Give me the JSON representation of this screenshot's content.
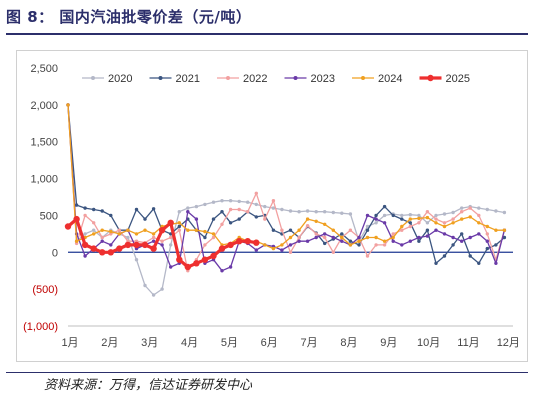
{
  "title": "图 8： 国内汽油批零价差（元/吨）",
  "source": "资料来源：万得，信达证券研发中心",
  "chart_data": {
    "type": "line",
    "title": "图 8： 国内汽油批零价差（元/吨）",
    "ylim": [
      -1000,
      2500
    ],
    "yticks": [
      -1000,
      -500,
      0,
      500,
      1000,
      1500,
      2000,
      2500
    ],
    "ytick_labels": [
      "(1,000)",
      "(500)",
      "0",
      "500",
      "1,000",
      "1,500",
      "2,000",
      "2,500"
    ],
    "categories": [
      "1月",
      "2月",
      "3月",
      "4月",
      "5月",
      "6月",
      "7月",
      "8月",
      "9月",
      "10月",
      "11月",
      "12月"
    ],
    "xlim": [
      0,
      52
    ],
    "legend_position": "top",
    "grid": false,
    "zero_line": true,
    "series": [
      {
        "name": "2020",
        "color": "#b4b8c8",
        "width": 1.3,
        "x": [
          0,
          1,
          2,
          3,
          4,
          5,
          6,
          7,
          8,
          9,
          10,
          11,
          12,
          13,
          14,
          15,
          16,
          17,
          18,
          19,
          20,
          21,
          22,
          23,
          24,
          25,
          26,
          27,
          28,
          29,
          30,
          31,
          32,
          33,
          34,
          35,
          36,
          37,
          38,
          39,
          40,
          41,
          42,
          43,
          44,
          45,
          46,
          47,
          48,
          49,
          50,
          51
        ],
        "values": [
          2000,
          150,
          250,
          300,
          200,
          300,
          250,
          200,
          -100,
          -450,
          -580,
          -500,
          100,
          550,
          600,
          620,
          650,
          680,
          700,
          700,
          690,
          680,
          650,
          620,
          600,
          580,
          560,
          550,
          560,
          550,
          550,
          540,
          530,
          520,
          150,
          350,
          400,
          500,
          520,
          500,
          510,
          500,
          400,
          500,
          520,
          540,
          600,
          620,
          600,
          580,
          560,
          540
        ]
      },
      {
        "name": "2021",
        "color": "#3b5580",
        "width": 1.3,
        "x": [
          0,
          1,
          2,
          3,
          4,
          5,
          6,
          7,
          8,
          9,
          10,
          11,
          12,
          13,
          14,
          15,
          16,
          17,
          18,
          19,
          20,
          21,
          22,
          23,
          24,
          25,
          26,
          27,
          28,
          29,
          30,
          31,
          32,
          33,
          34,
          35,
          36,
          37,
          38,
          39,
          40,
          41,
          42,
          43,
          44,
          45,
          46,
          47,
          48,
          49,
          50,
          51
        ],
        "values": [
          2000,
          640,
          600,
          580,
          560,
          500,
          300,
          300,
          580,
          450,
          590,
          300,
          250,
          350,
          450,
          300,
          200,
          450,
          550,
          400,
          450,
          550,
          480,
          500,
          300,
          250,
          300,
          200,
          350,
          260,
          120,
          180,
          250,
          150,
          100,
          300,
          500,
          620,
          500,
          450,
          400,
          150,
          300,
          -150,
          -50,
          100,
          250,
          -50,
          -150,
          50,
          100,
          200
        ]
      },
      {
        "name": "2022",
        "color": "#f2a0a0",
        "width": 1.3,
        "x": [
          0,
          1,
          2,
          3,
          4,
          5,
          6,
          7,
          8,
          9,
          10,
          11,
          12,
          13,
          14,
          15,
          16,
          17,
          18,
          19,
          20,
          21,
          22,
          23,
          24,
          25,
          26,
          27,
          28,
          29,
          30,
          31,
          32,
          33,
          34,
          35,
          36,
          37,
          38,
          39,
          40,
          41,
          42,
          43,
          44,
          45,
          46,
          47,
          48,
          49,
          50,
          51
        ],
        "values": [
          2000,
          120,
          500,
          400,
          200,
          250,
          300,
          150,
          150,
          130,
          200,
          150,
          200,
          300,
          -250,
          -100,
          100,
          200,
          380,
          580,
          580,
          550,
          800,
          450,
          700,
          300,
          0,
          200,
          360,
          250,
          200,
          0,
          200,
          300,
          200,
          -50,
          100,
          100,
          250,
          300,
          350,
          400,
          550,
          450,
          400,
          450,
          550,
          600,
          500,
          250,
          -100,
          300
        ]
      },
      {
        "name": "2023",
        "color": "#6a3aa8",
        "width": 1.3,
        "x": [
          0,
          1,
          2,
          3,
          4,
          5,
          6,
          7,
          8,
          9,
          10,
          11,
          12,
          13,
          14,
          15,
          16,
          17,
          18,
          19,
          20,
          21,
          22,
          23,
          24,
          25,
          26,
          27,
          28,
          29,
          30,
          31,
          32,
          33,
          34,
          35,
          36,
          37,
          38,
          39,
          40,
          41,
          42,
          43,
          44,
          45,
          46,
          47,
          48,
          49,
          50,
          51
        ],
        "values": [
          2000,
          250,
          -50,
          50,
          150,
          100,
          250,
          300,
          50,
          100,
          150,
          100,
          -200,
          -150,
          550,
          450,
          -150,
          -100,
          -250,
          -200,
          150,
          120,
          30,
          100,
          80,
          30,
          100,
          150,
          150,
          200,
          250,
          200,
          150,
          100,
          200,
          500,
          450,
          400,
          150,
          100,
          150,
          200,
          220,
          300,
          250,
          200,
          150,
          200,
          250,
          150,
          -150,
          300
        ]
      },
      {
        "name": "2024",
        "color": "#f0a020",
        "width": 1.3,
        "x": [
          0,
          1,
          2,
          3,
          4,
          5,
          6,
          7,
          8,
          9,
          10,
          11,
          12,
          13,
          14,
          15,
          16,
          17,
          18,
          19,
          20,
          21,
          22,
          23,
          24,
          25,
          26,
          27,
          28,
          29,
          30,
          31,
          32,
          33,
          34,
          35,
          36,
          37,
          38,
          39,
          40,
          41,
          42,
          43,
          44,
          45,
          46,
          47,
          48,
          49,
          50,
          51
        ],
        "values": [
          2000,
          150,
          200,
          250,
          300,
          280,
          250,
          300,
          250,
          300,
          250,
          350,
          380,
          400,
          300,
          300,
          280,
          250,
          100,
          120,
          200,
          150,
          150,
          100,
          50,
          100,
          200,
          300,
          450,
          420,
          380,
          300,
          200,
          100,
          150,
          200,
          200,
          150,
          200,
          350,
          450,
          460,
          470,
          400,
          350,
          400,
          450,
          480,
          400,
          350,
          300,
          300
        ]
      },
      {
        "name": "2025",
        "color": "#ee2f2f",
        "width": 3.2,
        "x": [
          0,
          1,
          2,
          3,
          4,
          5,
          6,
          7,
          8,
          9,
          10,
          11,
          12,
          13,
          14,
          15,
          16,
          17,
          18,
          19,
          20,
          21,
          22
        ],
        "values": [
          350,
          450,
          100,
          50,
          0,
          0,
          50,
          100,
          100,
          100,
          50,
          300,
          400,
          -100,
          -200,
          -150,
          -100,
          -50,
          50,
          100,
          150,
          150,
          130
        ]
      }
    ]
  }
}
